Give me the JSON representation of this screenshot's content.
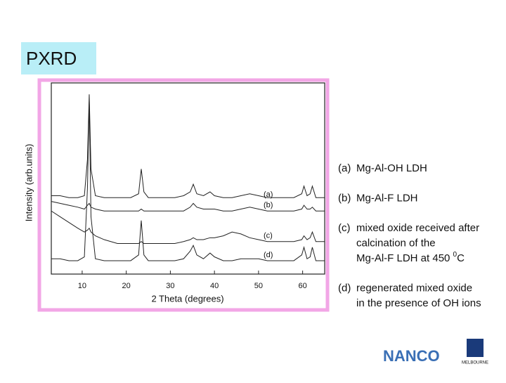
{
  "slide": {
    "title": "PXRD",
    "notes": [
      {
        "label": "(a)",
        "lines": [
          "Mg-Al-OH LDH"
        ]
      },
      {
        "label": "(b)",
        "lines": [
          "Mg-Al-F LDH"
        ]
      },
      {
        "label": "(c)",
        "lines": [
          "mixed oxide received after",
          "calcination of the",
          {
            "text": "Mg-Al-F LDH at 450 ",
            "sup": "0",
            "after": "C"
          }
        ]
      },
      {
        "label": "(d)",
        "lines": [
          "regenerated mixed oxide",
          "in the presence of OH ions"
        ]
      }
    ],
    "logos": [
      "NANCO",
      "MELBOURNE"
    ]
  },
  "chart_data": {
    "type": "line",
    "x_label": "2 Theta (degrees)",
    "y_label": "Intensity (arb.units)",
    "xlim": [
      3,
      65
    ],
    "xticks": [
      10,
      20,
      30,
      40,
      50,
      60
    ],
    "ylim": [
      0,
      100
    ],
    "x": [
      3,
      5,
      7,
      9,
      10.5,
      11.2,
      11.6,
      12,
      13,
      15,
      18,
      21,
      22.8,
      23.4,
      24,
      25,
      28,
      31,
      33,
      34.5,
      35.2,
      36,
      37.5,
      39,
      40,
      42,
      44,
      46,
      48,
      50,
      52,
      55,
      58,
      59.8,
      60.3,
      61,
      61.7,
      62.2,
      63,
      65
    ],
    "series": [
      {
        "name": "(a)",
        "color": "#222222",
        "values": [
          41,
          41,
          40,
          40,
          41,
          60,
          94,
          55,
          41,
          40,
          40,
          40,
          42,
          55,
          43,
          40,
          40,
          40,
          41,
          43,
          47,
          42,
          41,
          43,
          41,
          40,
          40,
          41,
          42,
          41,
          40,
          40,
          40,
          42,
          46,
          41,
          42,
          46,
          40,
          40
        ]
      },
      {
        "name": "(b)",
        "color": "#222222",
        "values": [
          38,
          37,
          36,
          35,
          34,
          36,
          37,
          35,
          34,
          33,
          33,
          33,
          33,
          34,
          33,
          33,
          33,
          33,
          33,
          35,
          37,
          35,
          34,
          34,
          34,
          33,
          33,
          34,
          35,
          34,
          33,
          33,
          33,
          34,
          36,
          34,
          34,
          35,
          33,
          33
        ]
      },
      {
        "name": "(c)",
        "color": "#222222",
        "values": [
          33,
          30,
          27,
          24,
          22,
          23,
          24,
          22,
          20,
          18,
          16,
          16,
          16,
          17,
          16,
          16,
          16,
          16,
          17,
          18,
          19,
          18,
          18,
          19,
          19,
          20,
          22,
          21,
          19,
          18,
          17,
          17,
          17,
          18,
          20,
          18,
          19,
          22,
          17,
          17
        ]
      },
      {
        "name": "(d)",
        "color": "#222222",
        "values": [
          8,
          8,
          7,
          7,
          9,
          45,
          90,
          30,
          8,
          7,
          7,
          7,
          10,
          28,
          10,
          7,
          7,
          7,
          8,
          12,
          15,
          10,
          8,
          11,
          9,
          7,
          7,
          8,
          8,
          8,
          7,
          7,
          7,
          10,
          14,
          8,
          9,
          14,
          7,
          7
        ]
      }
    ]
  }
}
